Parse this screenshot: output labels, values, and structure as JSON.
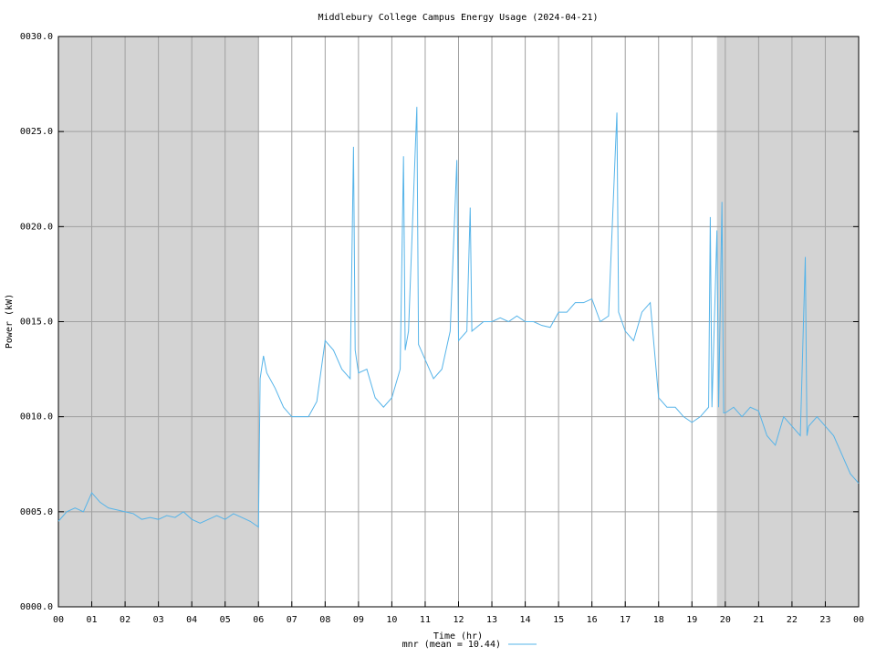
{
  "chart_data": {
    "type": "line",
    "title": "Middlebury College Campus Energy Usage (2024-04-21)",
    "xlabel": "Time (hr)",
    "ylabel": "Power (kW)",
    "x": [
      0,
      0.25,
      0.5,
      0.75,
      1.0,
      1.25,
      1.5,
      1.75,
      2.0,
      2.25,
      2.5,
      2.75,
      3.0,
      3.25,
      3.5,
      3.75,
      4.0,
      4.25,
      4.5,
      4.75,
      5.0,
      5.25,
      5.5,
      5.75,
      6.0,
      6.05,
      6.15,
      6.25,
      6.5,
      6.75,
      7.0,
      7.25,
      7.5,
      7.75,
      8.0,
      8.25,
      8.5,
      8.75,
      8.85,
      8.9,
      9.0,
      9.25,
      9.5,
      9.75,
      10.0,
      10.25,
      10.35,
      10.4,
      10.5,
      10.75,
      10.8,
      11.0,
      11.25,
      11.5,
      11.75,
      11.95,
      12.0,
      12.25,
      12.35,
      12.4,
      12.75,
      13.0,
      13.25,
      13.5,
      13.75,
      14.0,
      14.25,
      14.5,
      14.75,
      15.0,
      15.25,
      15.5,
      15.75,
      16.0,
      16.25,
      16.5,
      16.75,
      16.8,
      17.0,
      17.25,
      17.5,
      17.75,
      18.0,
      18.25,
      18.5,
      18.75,
      19.0,
      19.25,
      19.5,
      19.55,
      19.6,
      19.75,
      19.8,
      19.9,
      19.95,
      20.0,
      20.25,
      20.5,
      20.75,
      21.0,
      21.25,
      21.5,
      21.75,
      22.0,
      22.25,
      22.4,
      22.45,
      22.5,
      22.75,
      23.0,
      23.25,
      23.5,
      23.75,
      24.0
    ],
    "series": [
      {
        "name": "mnr (mean = 10.44)",
        "color": "#56b4e9",
        "values": [
          4.5,
          5.0,
          5.2,
          5.0,
          6.0,
          5.5,
          5.2,
          5.1,
          5.0,
          4.9,
          4.6,
          4.7,
          4.6,
          4.8,
          4.7,
          5.0,
          4.6,
          4.4,
          4.6,
          4.8,
          4.6,
          4.9,
          4.7,
          4.5,
          4.2,
          12.0,
          13.2,
          12.3,
          11.5,
          10.5,
          10.0,
          10.0,
          10.0,
          10.8,
          14.0,
          13.5,
          12.5,
          12.0,
          24.2,
          13.5,
          12.3,
          12.5,
          11.0,
          10.5,
          11.0,
          12.5,
          23.7,
          13.5,
          14.5,
          26.3,
          13.8,
          13.0,
          12.0,
          12.5,
          14.5,
          23.5,
          14.0,
          14.5,
          21.0,
          14.5,
          15.0,
          15.0,
          15.2,
          15.0,
          15.3,
          15.0,
          15.0,
          14.8,
          14.7,
          15.5,
          15.5,
          16.0,
          16.0,
          16.2,
          15.0,
          15.3,
          26.0,
          15.5,
          14.5,
          14.0,
          15.5,
          16.0,
          11.0,
          10.5,
          10.5,
          10.0,
          9.7,
          10.0,
          10.5,
          20.5,
          10.5,
          19.8,
          10.5,
          21.3,
          10.2,
          10.2,
          10.5,
          10.0,
          10.5,
          10.3,
          9.0,
          8.5,
          10.0,
          9.5,
          9.0,
          18.4,
          9.0,
          9.5,
          10.0,
          9.5,
          9.0,
          8.0,
          7.0,
          6.5
        ]
      }
    ],
    "xlim": [
      0,
      24
    ],
    "ylim": [
      0,
      30
    ],
    "xticks": [
      {
        "value": 0,
        "label": "00"
      },
      {
        "value": 1,
        "label": "01"
      },
      {
        "value": 2,
        "label": "02"
      },
      {
        "value": 3,
        "label": "03"
      },
      {
        "value": 4,
        "label": "04"
      },
      {
        "value": 5,
        "label": "05"
      },
      {
        "value": 6,
        "label": "06"
      },
      {
        "value": 7,
        "label": "07"
      },
      {
        "value": 8,
        "label": "08"
      },
      {
        "value": 9,
        "label": "09"
      },
      {
        "value": 10,
        "label": "10"
      },
      {
        "value": 11,
        "label": "11"
      },
      {
        "value": 12,
        "label": "12"
      },
      {
        "value": 13,
        "label": "13"
      },
      {
        "value": 14,
        "label": "14"
      },
      {
        "value": 15,
        "label": "15"
      },
      {
        "value": 16,
        "label": "16"
      },
      {
        "value": 17,
        "label": "17"
      },
      {
        "value": 18,
        "label": "18"
      },
      {
        "value": 19,
        "label": "19"
      },
      {
        "value": 20,
        "label": "20"
      },
      {
        "value": 21,
        "label": "21"
      },
      {
        "value": 22,
        "label": "22"
      },
      {
        "value": 23,
        "label": "23"
      },
      {
        "value": 24,
        "label": "00"
      }
    ],
    "yticks": [
      {
        "value": 0,
        "label": "0000.0"
      },
      {
        "value": 5,
        "label": "0005.0"
      },
      {
        "value": 10,
        "label": "0010.0"
      },
      {
        "value": 15,
        "label": "0015.0"
      },
      {
        "value": 20,
        "label": "0020.0"
      },
      {
        "value": 25,
        "label": "0025.0"
      },
      {
        "value": 30,
        "label": "0030.0"
      }
    ],
    "shaded_ranges": [
      [
        0,
        6
      ],
      [
        19.75,
        24
      ]
    ],
    "shade_color": "#d3d3d3",
    "grid": true
  }
}
